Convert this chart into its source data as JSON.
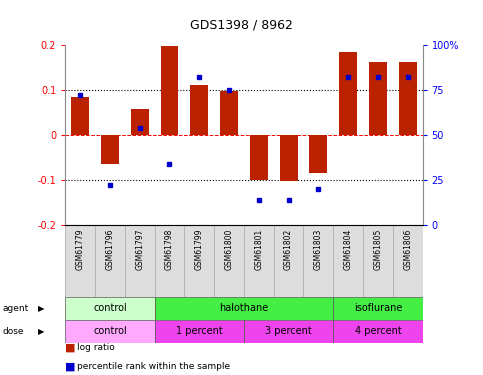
{
  "title": "GDS1398 / 8962",
  "samples": [
    "GSM61779",
    "GSM61796",
    "GSM61797",
    "GSM61798",
    "GSM61799",
    "GSM61800",
    "GSM61801",
    "GSM61802",
    "GSM61803",
    "GSM61804",
    "GSM61805",
    "GSM61806"
  ],
  "log_ratio": [
    0.085,
    -0.065,
    0.058,
    0.197,
    0.112,
    0.097,
    -0.1,
    -0.103,
    -0.085,
    0.185,
    0.163,
    0.163
  ],
  "percentile_raw": [
    72,
    22,
    54,
    34,
    82,
    75,
    14,
    14,
    20,
    82,
    82,
    82
  ],
  "bar_color": "#bb2200",
  "dot_color": "#0000cc",
  "agent_groups": [
    {
      "label": "control",
      "start": 0,
      "end": 3,
      "color": "#ccffcc"
    },
    {
      "label": "halothane",
      "start": 3,
      "end": 9,
      "color": "#44ee44"
    },
    {
      "label": "isoflurane",
      "start": 9,
      "end": 12,
      "color": "#44ee44"
    }
  ],
  "dose_groups": [
    {
      "label": "control",
      "start": 0,
      "end": 3,
      "color": "#ffaaff"
    },
    {
      "label": "1 percent",
      "start": 3,
      "end": 6,
      "color": "#ee44ee"
    },
    {
      "label": "3 percent",
      "start": 6,
      "end": 9,
      "color": "#ee44ee"
    },
    {
      "label": "4 percent",
      "start": 9,
      "end": 12,
      "color": "#ee44ee"
    }
  ],
  "ylim": [
    -0.2,
    0.2
  ],
  "yticks_left": [
    -0.2,
    -0.1,
    0.0,
    0.1,
    0.2
  ],
  "yticks_right": [
    0,
    25,
    50,
    75,
    100
  ],
  "hlines_dotted": [
    -0.1,
    0.1
  ],
  "hline_zero": 0.0,
  "background_color": "#ffffff",
  "legend_log_ratio": "log ratio",
  "legend_percentile": "percentile rank within the sample"
}
